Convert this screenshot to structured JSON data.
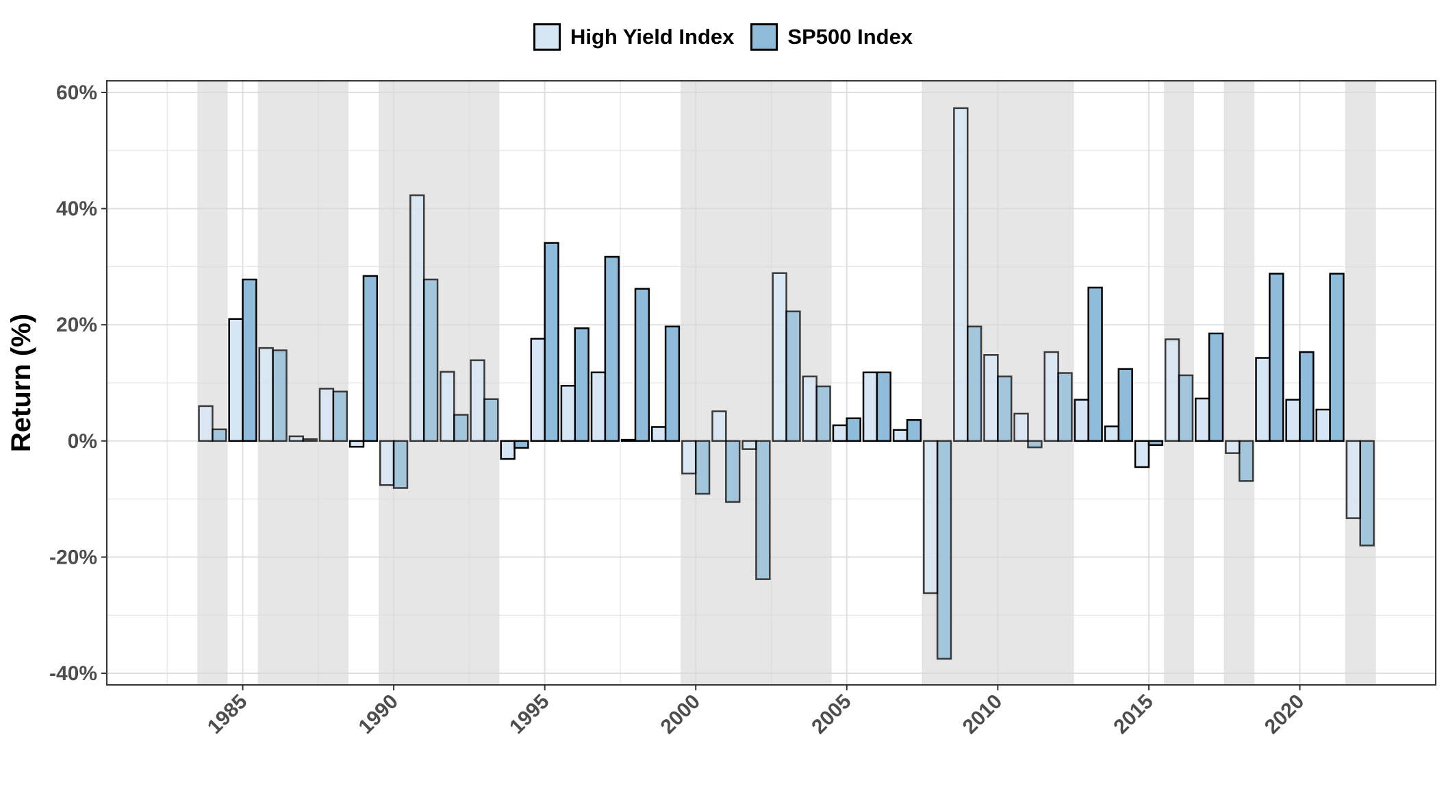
{
  "chart_data": {
    "type": "bar",
    "title": "",
    "xlabel": "",
    "ylabel": "Return (%)",
    "ylim": [
      -42,
      62
    ],
    "y_ticks": [
      -40,
      -20,
      0,
      20,
      40,
      60
    ],
    "y_tick_format": "%",
    "xlim": [
      1980.5,
      2024.5
    ],
    "x_ticks": [
      1985,
      1990,
      1995,
      2000,
      2005,
      2010,
      2015,
      2020
    ],
    "grid": true,
    "legend_position": "top",
    "recession_shading_color": "#e6e6e6",
    "shaded_periods": [
      [
        1984,
        1984
      ],
      [
        1986,
        1988
      ],
      [
        1990,
        1993
      ],
      [
        2000,
        2004
      ],
      [
        2008,
        2012
      ],
      [
        2016,
        2016
      ],
      [
        2018,
        2018
      ],
      [
        2022,
        2022
      ]
    ],
    "x": [
      1984,
      1985,
      1986,
      1987,
      1988,
      1989,
      1990,
      1991,
      1992,
      1993,
      1994,
      1995,
      1996,
      1997,
      1998,
      1999,
      2000,
      2001,
      2002,
      2003,
      2004,
      2005,
      2006,
      2007,
      2008,
      2009,
      2010,
      2011,
      2012,
      2013,
      2014,
      2015,
      2016,
      2017,
      2018,
      2019,
      2020,
      2021,
      2022
    ],
    "series": [
      {
        "name": "High Yield Index",
        "color": "#d6e6f5",
        "values": [
          6.0,
          21.0,
          16.0,
          0.8,
          9.0,
          -1.0,
          -7.6,
          42.3,
          11.9,
          13.9,
          -3.1,
          17.6,
          9.5,
          11.8,
          0.2,
          2.4,
          -5.6,
          5.1,
          -1.4,
          28.9,
          11.1,
          2.7,
          11.8,
          1.9,
          -26.2,
          57.3,
          14.8,
          4.7,
          15.3,
          7.1,
          2.5,
          -4.5,
          17.5,
          7.3,
          -2.1,
          14.3,
          7.1,
          5.4,
          -13.3
        ]
      },
      {
        "name": "SP500 Index",
        "color": "#8fbcdb",
        "values": [
          2.0,
          27.8,
          15.6,
          0.3,
          8.5,
          28.4,
          -8.1,
          27.8,
          4.5,
          7.2,
          -1.2,
          34.1,
          19.4,
          31.7,
          26.2,
          19.7,
          -9.1,
          -10.5,
          -23.8,
          22.3,
          9.4,
          3.9,
          11.8,
          3.6,
          -37.5,
          19.7,
          11.1,
          -1.1,
          11.7,
          26.4,
          12.4,
          -0.7,
          11.3,
          18.5,
          -6.9,
          28.8,
          15.3,
          28.8,
          -18.0
        ]
      }
    ]
  }
}
